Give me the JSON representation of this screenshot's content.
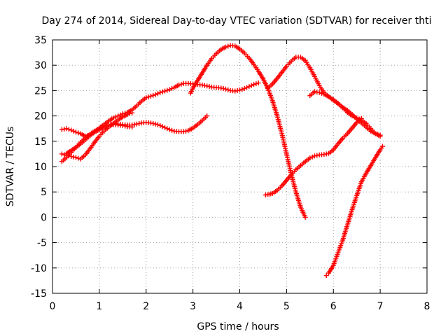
{
  "chart_data": {
    "type": "scatter",
    "title": "Day 274 of 2014, Sidereal Day-to-day VTEC variation (SDTVAR) for receiver thti",
    "xlabel": "GPS time / hours",
    "ylabel": "SDTVAR / TECUs",
    "xlim": [
      0,
      8
    ],
    "ylim": [
      -15,
      35
    ],
    "xticks": [
      "0",
      "1",
      "2",
      "3",
      "4",
      "5",
      "6",
      "7",
      "8"
    ],
    "yticks": [
      "-15",
      "-10",
      "-5",
      "0",
      "5",
      "10",
      "15",
      "20",
      "25",
      "30",
      "35"
    ],
    "grid": true,
    "marker": "+",
    "color": "#ff0000",
    "series": [
      {
        "points": [
          [
            0.2,
            17.3
          ],
          [
            0.3,
            17.5
          ],
          [
            0.4,
            17.2
          ],
          [
            0.5,
            16.8
          ],
          [
            0.6,
            16.5
          ],
          [
            0.7,
            16.0
          ],
          [
            0.8,
            16.2
          ],
          [
            0.9,
            16.8
          ],
          [
            1.0,
            17.3
          ],
          [
            1.1,
            17.8
          ],
          [
            1.2,
            18.2
          ],
          [
            1.3,
            18.5
          ],
          [
            1.4,
            18.4
          ],
          [
            1.5,
            18.3
          ],
          [
            1.6,
            18.2
          ],
          [
            1.7,
            18.2
          ],
          [
            1.8,
            18.4
          ],
          [
            1.9,
            18.6
          ],
          [
            2.0,
            18.7
          ],
          [
            2.1,
            18.6
          ],
          [
            2.2,
            18.4
          ],
          [
            2.3,
            18.1
          ],
          [
            2.4,
            17.7
          ],
          [
            2.5,
            17.3
          ],
          [
            2.6,
            17.0
          ],
          [
            2.7,
            16.9
          ],
          [
            2.8,
            16.9
          ],
          [
            2.9,
            17.1
          ],
          [
            3.0,
            17.6
          ],
          [
            3.1,
            18.3
          ],
          [
            3.2,
            19.1
          ],
          [
            3.3,
            20.0
          ]
        ]
      },
      {
        "points": [
          [
            0.2,
            11.0
          ],
          [
            0.3,
            11.8
          ],
          [
            0.4,
            12.8
          ],
          [
            0.5,
            13.8
          ],
          [
            0.6,
            14.8
          ],
          [
            0.7,
            15.7
          ],
          [
            0.8,
            16.4
          ],
          [
            0.9,
            17.0
          ],
          [
            1.0,
            17.5
          ],
          [
            1.1,
            18.0
          ],
          [
            1.2,
            18.2
          ],
          [
            1.3,
            18.3
          ],
          [
            1.4,
            18.2
          ],
          [
            1.5,
            18.1
          ],
          [
            1.6,
            17.9
          ],
          [
            1.7,
            17.8
          ]
        ]
      },
      {
        "points": [
          [
            0.2,
            12.5
          ],
          [
            0.3,
            12.2
          ],
          [
            0.4,
            12.0
          ],
          [
            0.5,
            11.8
          ],
          [
            0.6,
            11.5
          ],
          [
            0.7,
            12.3
          ],
          [
            0.8,
            13.5
          ],
          [
            0.9,
            14.8
          ],
          [
            1.0,
            16.0
          ],
          [
            1.1,
            17.0
          ],
          [
            1.2,
            17.8
          ],
          [
            1.3,
            18.5
          ],
          [
            1.4,
            19.2
          ],
          [
            1.5,
            19.8
          ],
          [
            1.6,
            20.3
          ],
          [
            1.7,
            20.6
          ]
        ]
      },
      {
        "points": [
          [
            0.3,
            12.6
          ],
          [
            0.4,
            13.2
          ],
          [
            0.5,
            13.8
          ],
          [
            0.6,
            14.5
          ],
          [
            0.7,
            15.3
          ],
          [
            0.8,
            16.1
          ],
          [
            0.9,
            16.9
          ],
          [
            1.0,
            17.6
          ],
          [
            1.1,
            18.3
          ],
          [
            1.2,
            19.0
          ],
          [
            1.3,
            19.6
          ],
          [
            1.4,
            20.0
          ],
          [
            1.5,
            20.4
          ],
          [
            1.6,
            20.7
          ],
          [
            1.7,
            21.2
          ],
          [
            1.8,
            22.0
          ],
          [
            1.9,
            22.9
          ],
          [
            2.0,
            23.6
          ],
          [
            2.1,
            23.9
          ],
          [
            2.2,
            24.2
          ],
          [
            2.3,
            24.6
          ],
          [
            2.4,
            24.9
          ],
          [
            2.5,
            25.2
          ],
          [
            2.6,
            25.6
          ],
          [
            2.7,
            26.1
          ],
          [
            2.8,
            26.4
          ],
          [
            2.9,
            26.4
          ],
          [
            3.0,
            26.3
          ],
          [
            3.1,
            26.2
          ],
          [
            3.2,
            26.1
          ],
          [
            3.3,
            25.9
          ],
          [
            3.4,
            25.7
          ],
          [
            3.5,
            25.6
          ],
          [
            3.6,
            25.5
          ],
          [
            3.7,
            25.3
          ],
          [
            3.8,
            25.0
          ],
          [
            3.9,
            24.9
          ],
          [
            4.0,
            25.1
          ],
          [
            4.1,
            25.4
          ],
          [
            4.2,
            25.8
          ],
          [
            4.3,
            26.2
          ],
          [
            4.4,
            26.5
          ]
        ]
      },
      {
        "points": [
          [
            2.95,
            24.5
          ],
          [
            3.0,
            25.5
          ],
          [
            3.1,
            27.0
          ],
          [
            3.2,
            28.5
          ],
          [
            3.3,
            30.0
          ],
          [
            3.4,
            31.3
          ],
          [
            3.5,
            32.3
          ],
          [
            3.6,
            33.1
          ],
          [
            3.7,
            33.6
          ],
          [
            3.8,
            33.9
          ],
          [
            3.9,
            33.8
          ],
          [
            4.0,
            33.2
          ],
          [
            4.1,
            32.4
          ],
          [
            4.2,
            31.4
          ],
          [
            4.3,
            30.2
          ],
          [
            4.4,
            28.8
          ],
          [
            4.5,
            27.3
          ],
          [
            4.6,
            25.4
          ],
          [
            4.7,
            23.0
          ],
          [
            4.8,
            20.0
          ],
          [
            4.9,
            16.5
          ],
          [
            5.0,
            12.5
          ],
          [
            5.1,
            8.5
          ],
          [
            5.2,
            5.0
          ],
          [
            5.3,
            2.0
          ],
          [
            5.4,
            0.0
          ]
        ]
      },
      {
        "points": [
          [
            4.6,
            25.5
          ],
          [
            4.7,
            26.3
          ],
          [
            4.8,
            27.4
          ],
          [
            4.9,
            28.6
          ],
          [
            5.0,
            29.8
          ],
          [
            5.1,
            30.8
          ],
          [
            5.2,
            31.6
          ],
          [
            5.3,
            31.6
          ],
          [
            5.4,
            30.9
          ],
          [
            5.5,
            29.5
          ],
          [
            5.6,
            27.8
          ],
          [
            5.7,
            26.0
          ],
          [
            5.8,
            24.6
          ],
          [
            5.9,
            23.8
          ],
          [
            6.0,
            23.1
          ],
          [
            6.1,
            22.4
          ],
          [
            6.2,
            21.7
          ],
          [
            6.3,
            21.1
          ],
          [
            6.4,
            20.3
          ],
          [
            6.5,
            19.4
          ],
          [
            6.6,
            18.6
          ],
          [
            6.7,
            17.8
          ],
          [
            6.8,
            17.0
          ],
          [
            6.9,
            16.5
          ],
          [
            7.0,
            16.0
          ]
        ]
      },
      {
        "points": [
          [
            4.55,
            4.4
          ],
          [
            4.7,
            4.7
          ],
          [
            4.8,
            5.3
          ],
          [
            4.9,
            6.2
          ],
          [
            5.0,
            7.3
          ],
          [
            5.1,
            8.4
          ],
          [
            5.2,
            9.4
          ],
          [
            5.3,
            10.2
          ],
          [
            5.4,
            11.0
          ],
          [
            5.5,
            11.7
          ],
          [
            5.6,
            12.1
          ],
          [
            5.7,
            12.3
          ],
          [
            5.8,
            12.4
          ],
          [
            5.9,
            12.6
          ],
          [
            6.0,
            13.3
          ],
          [
            6.1,
            14.5
          ],
          [
            6.2,
            15.6
          ],
          [
            6.3,
            16.5
          ],
          [
            6.4,
            17.6
          ],
          [
            6.5,
            18.7
          ],
          [
            6.6,
            19.5
          ]
        ]
      },
      {
        "points": [
          [
            5.5,
            24.0
          ],
          [
            5.6,
            24.8
          ],
          [
            5.7,
            24.6
          ],
          [
            5.8,
            24.3
          ],
          [
            5.9,
            23.8
          ],
          [
            6.0,
            23.2
          ],
          [
            6.1,
            22.5
          ],
          [
            6.2,
            21.6
          ],
          [
            6.3,
            20.7
          ],
          [
            6.4,
            20.0
          ],
          [
            6.5,
            19.6
          ],
          [
            6.6,
            19.2
          ],
          [
            6.7,
            18.5
          ],
          [
            6.8,
            17.5
          ],
          [
            6.9,
            16.5
          ],
          [
            7.0,
            16.2
          ]
        ]
      },
      {
        "points": [
          [
            5.85,
            -11.5
          ],
          [
            5.9,
            -11.0
          ],
          [
            6.0,
            -9.5
          ],
          [
            6.1,
            -7.0
          ],
          [
            6.2,
            -4.5
          ],
          [
            6.3,
            -1.5
          ],
          [
            6.4,
            1.5
          ],
          [
            6.5,
            4.3
          ],
          [
            6.6,
            7.0
          ],
          [
            6.7,
            8.7
          ],
          [
            6.8,
            10.2
          ],
          [
            6.9,
            11.8
          ],
          [
            7.0,
            13.3
          ],
          [
            7.05,
            14.0
          ]
        ]
      }
    ]
  }
}
